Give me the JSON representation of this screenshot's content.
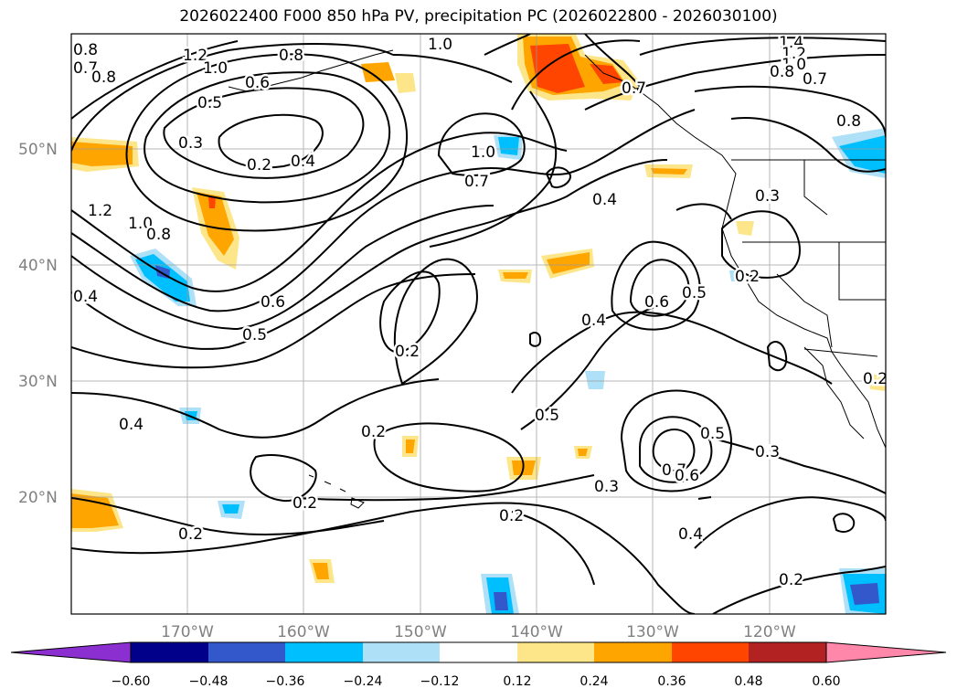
{
  "title": "2026022400 F000 850 hPa PV, precipitation PC (2026022800 - 2026030100)",
  "axes": {
    "longitude_labels": [
      "170°W",
      "160°W",
      "150°W",
      "140°W",
      "130°W",
      "120°W"
    ],
    "latitude_labels": [
      "50°N",
      "40°N",
      "30°N",
      "20°N"
    ],
    "label_color": "#808080",
    "grid": true
  },
  "contour_labels": [
    {
      "text": "1.2"
    },
    {
      "text": "1.0"
    },
    {
      "text": "0.8"
    },
    {
      "text": "0.6"
    },
    {
      "text": "0.5"
    },
    {
      "text": "0.3"
    },
    {
      "text": "0.2"
    },
    {
      "text": "0.4"
    },
    {
      "text": "1.0"
    },
    {
      "text": "0.8"
    },
    {
      "text": "0.7"
    },
    {
      "text": "0.8"
    },
    {
      "text": "1.2"
    },
    {
      "text": "1.0"
    },
    {
      "text": "0.8"
    },
    {
      "text": "0.4"
    },
    {
      "text": "0.6"
    },
    {
      "text": "0.5"
    },
    {
      "text": "0.2"
    },
    {
      "text": "1.0"
    },
    {
      "text": "0.7"
    },
    {
      "text": "0.4"
    },
    {
      "text": "0.3"
    },
    {
      "text": "0.2"
    },
    {
      "text": "0.6"
    },
    {
      "text": "0.5"
    },
    {
      "text": "0.4"
    },
    {
      "text": "0.4"
    },
    {
      "text": "0.2"
    },
    {
      "text": "0.2"
    },
    {
      "text": "0.5"
    },
    {
      "text": "0.5"
    },
    {
      "text": "0.3"
    },
    {
      "text": "0.7"
    },
    {
      "text": "0.6"
    },
    {
      "text": "0.3"
    },
    {
      "text": "0.2"
    },
    {
      "text": "0.2"
    },
    {
      "text": "0.4"
    },
    {
      "text": "0.2"
    },
    {
      "text": "1.4"
    },
    {
      "text": "1.2"
    },
    {
      "text": "1.0"
    },
    {
      "text": "0.8"
    },
    {
      "text": "0.7"
    },
    {
      "text": "0.8"
    },
    {
      "text": "0.2"
    },
    {
      "text": "0.7"
    }
  ],
  "colorbar": {
    "colors": [
      "#8b2fd0",
      "#00008b",
      "#3358cc",
      "#00bfff",
      "#aee0f8",
      "#ffffff",
      "#fde68a",
      "#ffa500",
      "#ff4500",
      "#b22222",
      "#ff88aa"
    ],
    "tick_labels": [
      "−0.60",
      "−0.48",
      "−0.36",
      "−0.24",
      "−0.12",
      "0.12",
      "0.24",
      "0.36",
      "0.48",
      "0.60"
    ]
  },
  "legend_colors": {
    "orange": "#ffa500",
    "red_orange": "#ff4500",
    "light_yellow": "#fde68a",
    "sky_blue": "#00bfff",
    "royal_blue": "#3358cc",
    "light_blue": "#aee0f8",
    "navy": "#00008b",
    "purple": "#8b2fd0"
  }
}
